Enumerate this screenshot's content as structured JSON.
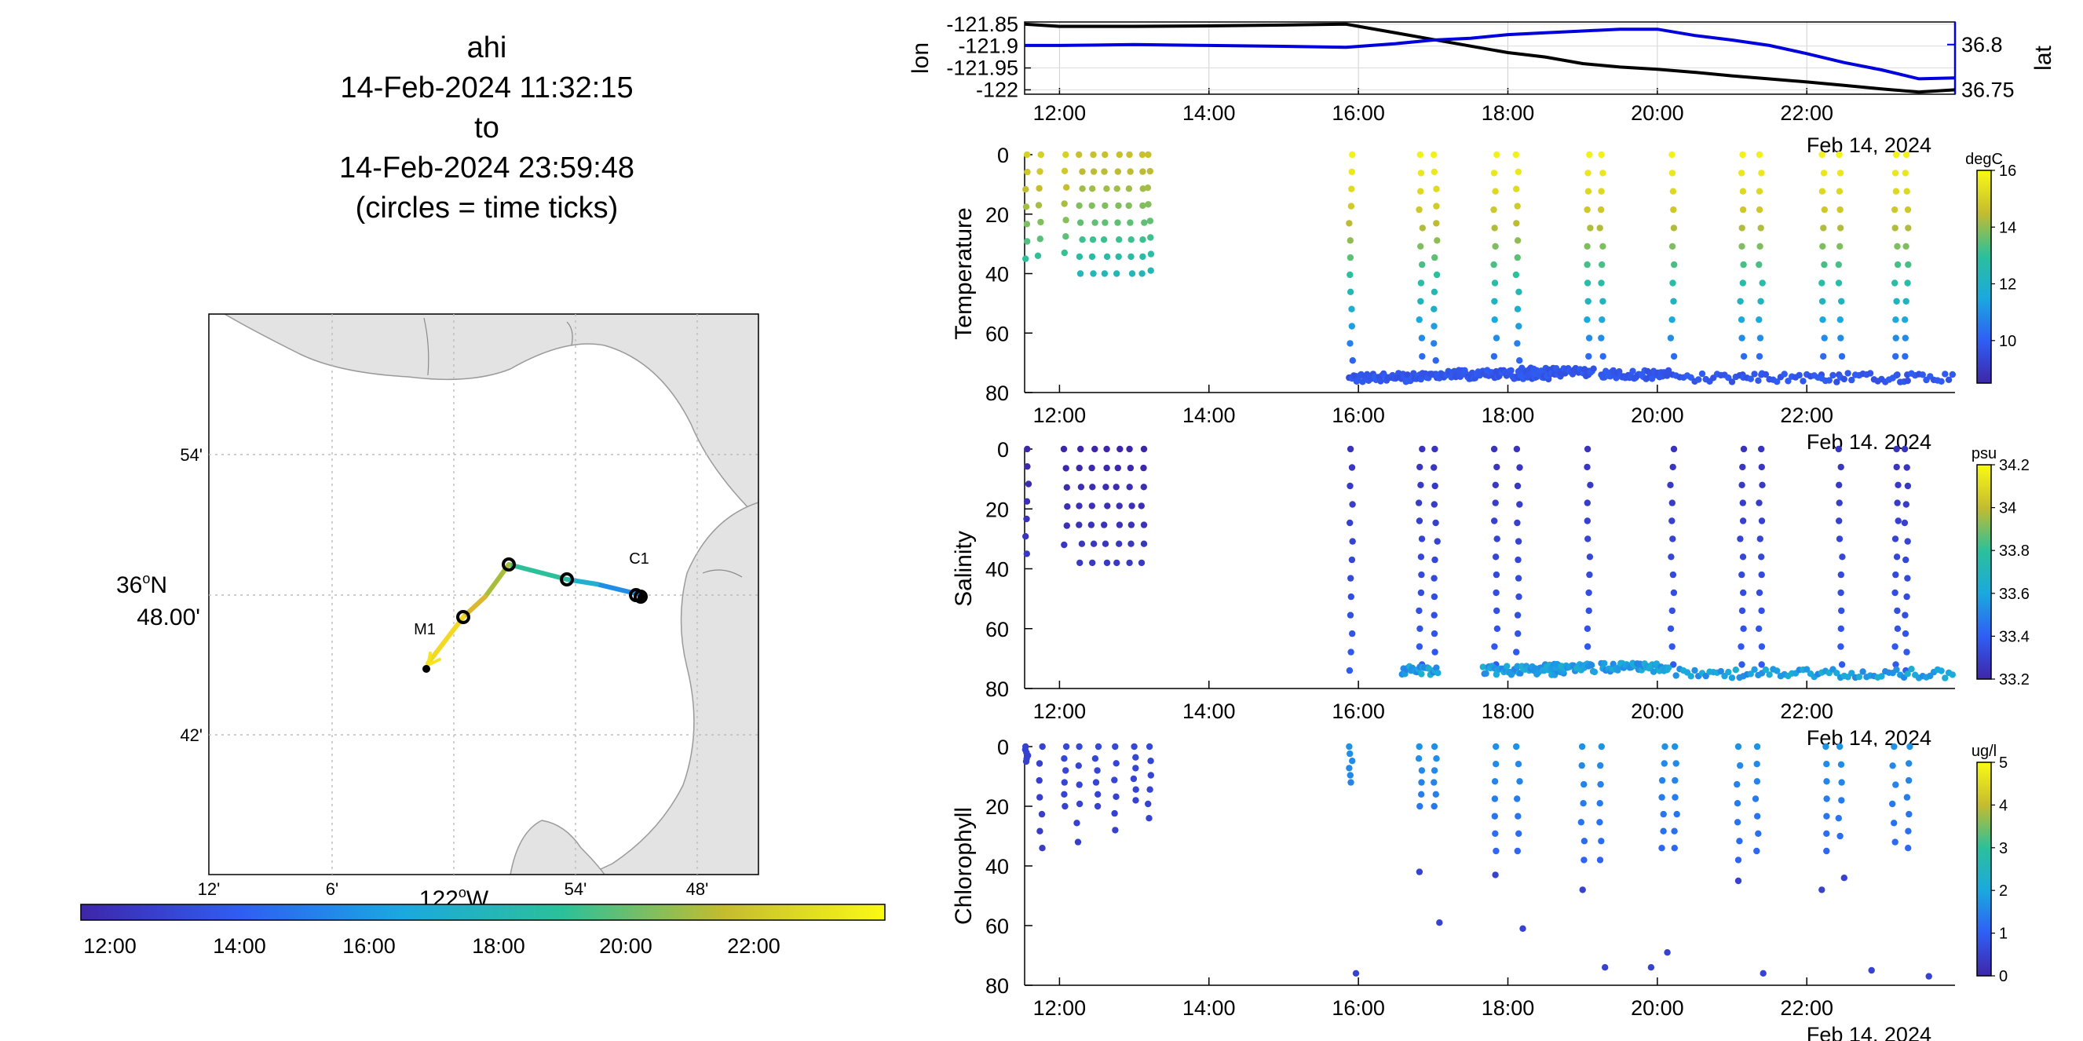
{
  "title": {
    "name": "ahi",
    "start": "14-Feb-2024 11:32:15",
    "to": "to",
    "end": "14-Feb-2024 23:59:48",
    "note": "(circles = time ticks)"
  },
  "colors": {
    "black": "#000000",
    "blue": "#0000dd",
    "land": "#e3e3e3",
    "coast": "#9a9a9a",
    "grid": "#c8c8c8"
  },
  "map": {
    "lat_label_deg": "36",
    "lat_label_min": "48.00'",
    "lat_label_hem": "N",
    "lon_label_deg": "122",
    "lon_label_hem": "W",
    "lat_ticks": [
      "54'",
      "42'"
    ],
    "lon_ticks": [
      "12'",
      "6'",
      "54'",
      "48'"
    ],
    "moorings": [
      {
        "name": "M1"
      },
      {
        "name": "C1"
      }
    ],
    "track_colorbar_ticks": [
      "12:00",
      "14:00",
      "16:00",
      "18:00",
      "20:00",
      "22:00"
    ]
  },
  "chart_data": [
    {
      "type": "line",
      "title": "",
      "xlabel": "",
      "date_label": "Feb 14, 2024",
      "x_ticks": [
        "12:00",
        "14:00",
        "16:00",
        "18:00",
        "20:00",
        "22:00"
      ],
      "xlim": [
        "11:32",
        "23:59"
      ],
      "grid": true,
      "left_axis": {
        "label": "lon",
        "ticks": [
          "-121.85",
          "-121.9",
          "-121.95",
          "-122"
        ],
        "ylim": [
          -122.01,
          -121.845
        ]
      },
      "right_axis": {
        "label": "lat",
        "ticks": [
          "36.8",
          "36.75"
        ],
        "ylim": [
          36.745,
          36.825
        ]
      },
      "series": [
        {
          "name": "lon",
          "axis": "left",
          "color": "#000000",
          "x": [
            "11:32",
            "12:00",
            "13:00",
            "14:00",
            "15:00",
            "15:50",
            "16:30",
            "17:00",
            "17:30",
            "18:00",
            "18:30",
            "19:00",
            "19:30",
            "20:00",
            "20:30",
            "21:00",
            "21:30",
            "22:00",
            "22:30",
            "23:00",
            "23:30",
            "23:59"
          ],
          "y": [
            -121.85,
            -121.855,
            -121.855,
            -121.854,
            -121.852,
            -121.85,
            -121.87,
            -121.885,
            -121.9,
            -121.915,
            -121.925,
            -121.94,
            -121.948,
            -121.953,
            -121.96,
            -121.968,
            -121.975,
            -121.982,
            -121.99,
            -121.998,
            -122.005,
            -122.0
          ]
        },
        {
          "name": "lat",
          "axis": "right",
          "color": "#0000dd",
          "x": [
            "11:32",
            "12:00",
            "13:00",
            "14:00",
            "15:00",
            "15:50",
            "16:30",
            "17:00",
            "17:30",
            "18:00",
            "18:30",
            "19:00",
            "19:30",
            "20:00",
            "20:30",
            "21:00",
            "21:30",
            "22:00",
            "22:30",
            "23:00",
            "23:30",
            "23:59"
          ],
          "y": [
            36.799,
            36.799,
            36.8,
            36.799,
            36.798,
            36.797,
            36.801,
            36.805,
            36.807,
            36.811,
            36.813,
            36.815,
            36.817,
            36.817,
            36.81,
            36.805,
            36.799,
            36.79,
            36.78,
            36.772,
            36.762,
            36.763
          ]
        }
      ]
    },
    {
      "type": "scatter",
      "ylabel": "Temperature",
      "date_label": "Feb 14, 2024",
      "x_ticks": [
        "12:00",
        "14:00",
        "16:00",
        "18:00",
        "20:00",
        "22:00"
      ],
      "y_ticks": [
        "0",
        "20",
        "40",
        "60",
        "80"
      ],
      "ylim": [
        80,
        0
      ],
      "colorbar": {
        "unit": "degC",
        "ticks": [
          "16",
          "14",
          "12",
          "10"
        ],
        "clim": [
          8.5,
          16
        ]
      },
      "profiles": [
        {
          "t": "11:34",
          "dmax": 35,
          "v0": 15
        },
        {
          "t": "11:44",
          "dmax": 34,
          "v0": 15
        },
        {
          "t": "12:05",
          "dmax": 33,
          "v0": 15
        },
        {
          "t": "12:17",
          "dmax": 40,
          "v0": 14.6
        },
        {
          "t": "12:27",
          "dmax": 40,
          "v0": 14.6
        },
        {
          "t": "12:37",
          "dmax": 40,
          "v0": 14.6
        },
        {
          "t": "12:47",
          "dmax": 40,
          "v0": 14.6
        },
        {
          "t": "12:57",
          "dmax": 40,
          "v0": 14.6
        },
        {
          "t": "13:07",
          "dmax": 40,
          "v0": 14.6
        },
        {
          "t": "13:12",
          "dmax": 39,
          "v0": 14.6
        },
        {
          "t": "15:54",
          "dmax": 75,
          "v0": 15.8
        },
        {
          "t": "16:50",
          "dmax": 74,
          "v0": 15.8
        },
        {
          "t": "17:02",
          "dmax": 75,
          "v0": 15.8
        },
        {
          "t": "17:50",
          "dmax": 74,
          "v0": 15.8
        },
        {
          "t": "18:08",
          "dmax": 75,
          "v0": 15.8
        },
        {
          "t": "19:05",
          "dmax": 74,
          "v0": 15.8
        },
        {
          "t": "19:15",
          "dmax": 74,
          "v0": 15.8
        },
        {
          "t": "20:12",
          "dmax": 74,
          "v0": 15.8
        },
        {
          "t": "21:08",
          "dmax": 74,
          "v0": 15.8
        },
        {
          "t": "21:23",
          "dmax": 74,
          "v0": 15.8
        },
        {
          "t": "22:13",
          "dmax": 74,
          "v0": 15.8
        },
        {
          "t": "22:27",
          "dmax": 74,
          "v0": 15.8
        },
        {
          "t": "23:12",
          "dmax": 74,
          "v0": 15.8
        },
        {
          "t": "23:20",
          "dmax": 74,
          "v0": 15.8
        }
      ],
      "bottom_runs": [
        {
          "t0": "15:55",
          "t1": "17:05",
          "d": 75
        },
        {
          "t0": "17:05",
          "t1": "18:45",
          "d": 74
        },
        {
          "t0": "18:10",
          "t1": "19:10",
          "d": 73
        },
        {
          "t0": "19:15",
          "t1": "20:10",
          "d": 74
        },
        {
          "t0": "20:15",
          "t1": "23:59",
          "d": 75
        }
      ]
    },
    {
      "type": "scatter",
      "ylabel": "Salinity",
      "date_label": "Feb 14, 2024",
      "x_ticks": [
        "12:00",
        "14:00",
        "16:00",
        "18:00",
        "20:00",
        "22:00"
      ],
      "y_ticks": [
        "0",
        "20",
        "40",
        "60",
        "80"
      ],
      "ylim": [
        80,
        0
      ],
      "colorbar": {
        "unit": "psu",
        "ticks": [
          "34.2",
          "34",
          "33.8",
          "33.6",
          "33.4",
          "33.2"
        ],
        "clim": [
          33.2,
          34.2
        ]
      },
      "profiles": [
        {
          "t": "11:34",
          "dmax": 35,
          "v0": 33.2
        },
        {
          "t": "12:05",
          "dmax": 32,
          "v0": 33.2
        },
        {
          "t": "12:17",
          "dmax": 38,
          "v0": 33.2
        },
        {
          "t": "12:27",
          "dmax": 38,
          "v0": 33.2
        },
        {
          "t": "12:37",
          "dmax": 38,
          "v0": 33.2
        },
        {
          "t": "12:47",
          "dmax": 38,
          "v0": 33.2
        },
        {
          "t": "12:57",
          "dmax": 38,
          "v0": 33.2
        },
        {
          "t": "13:07",
          "dmax": 38,
          "v0": 33.2
        },
        {
          "t": "15:54",
          "dmax": 74,
          "v0": 33.25
        },
        {
          "t": "16:50",
          "dmax": 72,
          "v0": 33.25
        },
        {
          "t": "17:02",
          "dmax": 74,
          "v0": 33.25
        },
        {
          "t": "17:50",
          "dmax": 72,
          "v0": 33.25
        },
        {
          "t": "18:08",
          "dmax": 74,
          "v0": 33.25
        },
        {
          "t": "19:05",
          "dmax": 72,
          "v0": 33.25
        },
        {
          "t": "20:12",
          "dmax": 72,
          "v0": 33.25
        },
        {
          "t": "21:08",
          "dmax": 72,
          "v0": 33.25
        },
        {
          "t": "21:23",
          "dmax": 72,
          "v0": 33.25
        },
        {
          "t": "22:27",
          "dmax": 72,
          "v0": 33.25
        },
        {
          "t": "23:12",
          "dmax": 72,
          "v0": 33.25
        },
        {
          "t": "23:20",
          "dmax": 74,
          "v0": 33.25
        }
      ],
      "bottom_runs": [
        {
          "t0": "16:35",
          "t1": "17:05",
          "d": 74
        },
        {
          "t0": "17:40",
          "t1": "18:45",
          "d": 74
        },
        {
          "t0": "18:30",
          "t1": "19:10",
          "d": 73
        },
        {
          "t0": "19:15",
          "t1": "20:10",
          "d": 73
        },
        {
          "t0": "20:15",
          "t1": "23:59",
          "d": 75
        }
      ]
    },
    {
      "type": "scatter",
      "ylabel": "Chlorophyll",
      "date_label": "Feb 14, 2024",
      "x_ticks": [
        "12:00",
        "14:00",
        "16:00",
        "18:00",
        "20:00",
        "22:00"
      ],
      "y_ticks": [
        "0",
        "20",
        "40",
        "60",
        "80"
      ],
      "ylim": [
        80,
        0
      ],
      "colorbar": {
        "unit": "ug/l",
        "ticks": [
          "5",
          "4",
          "3",
          "2",
          "1",
          "0"
        ],
        "clim": [
          0,
          5
        ]
      },
      "profiles": [
        {
          "t": "11:34",
          "dmax": 5,
          "v0": 0.3
        },
        {
          "t": "11:45",
          "dmax": 34,
          "v0": 0.3
        },
        {
          "t": "12:05",
          "dmax": 20,
          "v0": 0.4
        },
        {
          "t": "12:15",
          "dmax": 32,
          "v0": 0.4
        },
        {
          "t": "12:30",
          "dmax": 20,
          "v0": 0.4
        },
        {
          "t": "12:45",
          "dmax": 28,
          "v0": 0.4
        },
        {
          "t": "13:00",
          "dmax": 18,
          "v0": 0.4
        },
        {
          "t": "13:12",
          "dmax": 24,
          "v0": 0.4
        },
        {
          "t": "15:54",
          "dmax": 12,
          "v0": 1.5
        },
        {
          "t": "16:50",
          "dmax": 20,
          "v0": 1.5
        },
        {
          "t": "17:02",
          "dmax": 20,
          "v0": 1.5
        },
        {
          "t": "17:50",
          "dmax": 35,
          "v0": 1.5
        },
        {
          "t": "18:08",
          "dmax": 35,
          "v0": 1.5
        },
        {
          "t": "19:00",
          "dmax": 38,
          "v0": 1.5
        },
        {
          "t": "19:15",
          "dmax": 38,
          "v0": 1.5
        },
        {
          "t": "20:05",
          "dmax": 34,
          "v0": 1.5
        },
        {
          "t": "20:15",
          "dmax": 34,
          "v0": 1.5
        },
        {
          "t": "21:05",
          "dmax": 38,
          "v0": 1.5
        },
        {
          "t": "21:20",
          "dmax": 35,
          "v0": 1.5
        },
        {
          "t": "22:15",
          "dmax": 35,
          "v0": 1.5
        },
        {
          "t": "22:27",
          "dmax": 30,
          "v0": 1.5
        },
        {
          "t": "23:10",
          "dmax": 32,
          "v0": 1.5
        },
        {
          "t": "23:22",
          "dmax": 34,
          "v0": 1.5
        }
      ],
      "deep_points": [
        {
          "t": "15:58",
          "d": 76
        },
        {
          "t": "16:49",
          "d": 42
        },
        {
          "t": "17:05",
          "d": 59
        },
        {
          "t": "17:50",
          "d": 43
        },
        {
          "t": "18:12",
          "d": 61
        },
        {
          "t": "19:00",
          "d": 48
        },
        {
          "t": "19:18",
          "d": 74
        },
        {
          "t": "19:55",
          "d": 74
        },
        {
          "t": "20:08",
          "d": 69
        },
        {
          "t": "21:05",
          "d": 45
        },
        {
          "t": "21:25",
          "d": 76
        },
        {
          "t": "22:12",
          "d": 48
        },
        {
          "t": "22:30",
          "d": 44
        },
        {
          "t": "22:52",
          "d": 75
        },
        {
          "t": "23:38",
          "d": 77
        }
      ]
    }
  ]
}
